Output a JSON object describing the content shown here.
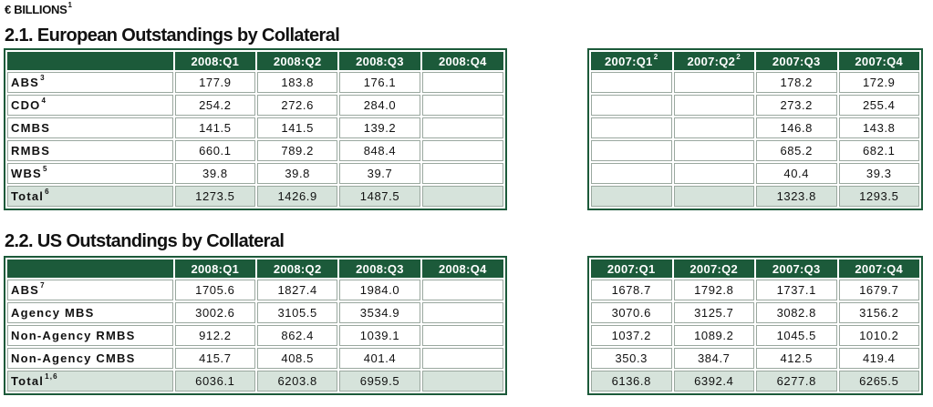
{
  "unit_note": {
    "text": "€ BILLIONS",
    "note": "1"
  },
  "sections": [
    {
      "title": "2.1. European Outstandings by Collateral",
      "left_table": {
        "columns": [
          {
            "label": "2008:Q1"
          },
          {
            "label": "2008:Q2"
          },
          {
            "label": "2008:Q3"
          },
          {
            "label": "2008:Q4"
          }
        ],
        "rows": [
          {
            "label": "ABS",
            "note": "3",
            "cells": [
              "177.9",
              "183.8",
              "176.1",
              null
            ]
          },
          {
            "label": "CDO",
            "note": "4",
            "cells": [
              "254.2",
              "272.6",
              "284.0",
              null
            ]
          },
          {
            "label": "CMBS",
            "cells": [
              "141.5",
              "141.5",
              "139.2",
              null
            ]
          },
          {
            "label": "RMBS",
            "cells": [
              "660.1",
              "789.2",
              "848.4",
              null
            ]
          },
          {
            "label": "WBS",
            "note": "5",
            "cells": [
              "39.8",
              "39.8",
              "39.7",
              null
            ]
          },
          {
            "label": "Total",
            "note": "6",
            "cells": [
              "1273.5",
              "1426.9",
              "1487.5",
              null
            ]
          }
        ]
      },
      "right_table": {
        "columns": [
          {
            "label": "2007:Q1",
            "note": "2"
          },
          {
            "label": "2007:Q2",
            "note": "2"
          },
          {
            "label": "2007:Q3"
          },
          {
            "label": "2007:Q4"
          }
        ],
        "rows": [
          [
            null,
            null,
            "178.2",
            "172.9"
          ],
          [
            null,
            null,
            "273.2",
            "255.4"
          ],
          [
            null,
            null,
            "146.8",
            "143.8"
          ],
          [
            null,
            null,
            "685.2",
            "682.1"
          ],
          [
            null,
            null,
            "40.4",
            "39.3"
          ],
          [
            null,
            null,
            "1323.8",
            "1293.5"
          ]
        ]
      }
    },
    {
      "title": "2.2. US Outstandings by Collateral",
      "left_table": {
        "columns": [
          {
            "label": "2008:Q1"
          },
          {
            "label": "2008:Q2"
          },
          {
            "label": "2008:Q3"
          },
          {
            "label": "2008:Q4"
          }
        ],
        "rows": [
          {
            "label": "ABS",
            "note": "7",
            "cells": [
              "1705.6",
              "1827.4",
              "1984.0",
              null
            ]
          },
          {
            "label": "Agency MBS",
            "cells": [
              "3002.6",
              "3105.5",
              "3534.9",
              null
            ]
          },
          {
            "label": "Non-Agency RMBS",
            "cells": [
              "912.2",
              "862.4",
              "1039.1",
              null
            ]
          },
          {
            "label": "Non-Agency CMBS",
            "cells": [
              "415.7",
              "408.5",
              "401.4",
              null
            ]
          },
          {
            "label": "Total",
            "note": "1,6",
            "cells": [
              "6036.1",
              "6203.8",
              "6959.5",
              null
            ]
          }
        ]
      },
      "right_table": {
        "columns": [
          {
            "label": "2007:Q1"
          },
          {
            "label": "2007:Q2"
          },
          {
            "label": "2007:Q3"
          },
          {
            "label": "2007:Q4"
          }
        ],
        "rows": [
          [
            "1678.7",
            "1792.8",
            "1737.1",
            "1679.7"
          ],
          [
            "3070.6",
            "3125.7",
            "3082.8",
            "3156.2"
          ],
          [
            "1037.2",
            "1089.2",
            "1045.5",
            "1010.2"
          ],
          [
            "350.3",
            "384.7",
            "412.5",
            "419.4"
          ],
          [
            "6136.8",
            "6392.4",
            "6277.8",
            "6265.5"
          ]
        ]
      }
    }
  ]
}
